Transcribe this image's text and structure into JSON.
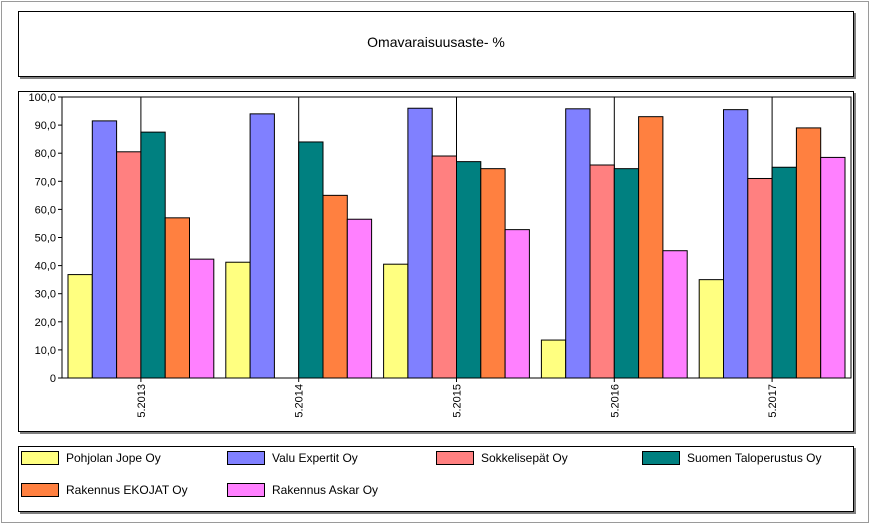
{
  "chart_data": {
    "type": "bar",
    "title": "Omavaraisuusaste- %",
    "categories": [
      "5.2013",
      "5.2014",
      "5.2015",
      "5.2016",
      "5.2017"
    ],
    "ylim": [
      0,
      100
    ],
    "yticks": [
      "0",
      "10,0",
      "20,0",
      "30,0",
      "40,0",
      "50,0",
      "60,0",
      "70,0",
      "80,0",
      "90,0",
      "100,0"
    ],
    "grid": "vertical category gridlines",
    "legend_position": "bottom",
    "series": [
      {
        "name": "Pohjolan Jope Oy",
        "color": "#ffff80",
        "values": [
          36.8,
          41.2,
          40.5,
          13.5,
          35.0
        ]
      },
      {
        "name": "Valu Expertit Oy",
        "color": "#8080ff",
        "values": [
          91.5,
          94.0,
          96.0,
          95.8,
          95.5
        ]
      },
      {
        "name": "Sokkelisepät Oy",
        "color": "#ff8080",
        "values": [
          80.5,
          null,
          79.0,
          75.8,
          71.0
        ]
      },
      {
        "name": "Suomen Taloperustus Oy",
        "color": "#008080",
        "values": [
          87.5,
          84.0,
          77.0,
          74.5,
          75.0
        ]
      },
      {
        "name": "Rakennus EKOJAT Oy",
        "color": "#ff8040",
        "values": [
          57.0,
          65.0,
          74.5,
          93.0,
          89.0
        ]
      },
      {
        "name": "Rakennus Askar Oy",
        "color": "#ff80ff",
        "values": [
          42.3,
          56.5,
          52.8,
          45.3,
          78.5
        ]
      }
    ]
  }
}
